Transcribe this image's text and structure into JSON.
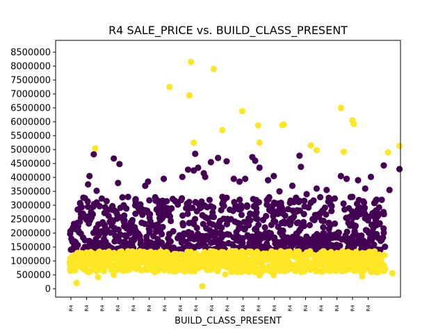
{
  "chart_data": {
    "type": "scatter",
    "title": "R4 SALE_PRICE vs. BUILD_CLASS_PRESENT",
    "xlabel": "BUILD_CLASS_PRESENT",
    "ylabel": "",
    "ylim": [
      0,
      8500000
    ],
    "yticks": [
      0,
      500000,
      1000000,
      1500000,
      2000000,
      2500000,
      3000000,
      3500000,
      4000000,
      4500000,
      5000000,
      5500000,
      6000000,
      6500000,
      7000000,
      7500000,
      8000000,
      8500000
    ],
    "ytick_labels": [
      "0",
      "500000",
      "1000000",
      "1500000",
      "2000000",
      "2500000",
      "3000000",
      "3500000",
      "4000000",
      "4500000",
      "5000000",
      "5500000",
      "6000000",
      "6500000",
      "7000000",
      "7500000",
      "8000000",
      "8500000"
    ],
    "xticks": [
      "R4",
      "R4",
      "R4",
      "R4",
      "R4",
      "R4",
      "R4",
      "R4",
      "R4",
      "R4",
      "R4",
      "R4",
      "R4",
      "R4",
      "R4",
      "R4",
      "R4",
      "R4",
      "R4",
      "R4"
    ],
    "xlim": [
      -1,
      21
    ],
    "grid": false,
    "legend": "none",
    "colors": {
      "high": "#440154",
      "low": "#fde725"
    },
    "series": [
      {
        "color_key": "low",
        "points": [
          [
            -0.6,
            210000
          ],
          [
            -0.5,
            880000
          ],
          [
            0.7,
            5050000
          ],
          [
            0.9,
            420000
          ],
          [
            2.0,
            500000
          ],
          [
            5.9,
            7250000
          ],
          [
            7.4,
            8150000
          ],
          [
            7.3,
            6950000
          ],
          [
            7.6,
            5250000
          ],
          [
            8.2,
            90000
          ],
          [
            9.0,
            7900000
          ],
          [
            9.6,
            5700000
          ],
          [
            9.8,
            520000
          ],
          [
            11.0,
            6380000
          ],
          [
            12.1,
            5870000
          ],
          [
            12.2,
            5250000
          ],
          [
            12.2,
            480000
          ],
          [
            13.8,
            5880000
          ],
          [
            13.9,
            5900000
          ],
          [
            13.2,
            490000
          ],
          [
            15.8,
            5150000
          ],
          [
            16.2,
            4980000
          ],
          [
            17.9,
            6500000
          ],
          [
            18.1,
            4920000
          ],
          [
            18.7,
            6050000
          ],
          [
            18.8,
            5920000
          ],
          [
            19.4,
            450000
          ],
          [
            21.2,
            4900000
          ],
          [
            22.0,
            5130000
          ],
          [
            21.5,
            560000
          ]
        ]
      },
      {
        "color_key": "high",
        "points": [
          [
            0.2,
            3750000
          ],
          [
            0.3,
            4050000
          ],
          [
            0.6,
            4830000
          ],
          [
            0.8,
            3520000
          ],
          [
            1.5,
            3150000
          ],
          [
            2.0,
            4680000
          ],
          [
            2.3,
            3800000
          ],
          [
            2.4,
            4480000
          ],
          [
            3.0,
            3300000
          ],
          [
            3.5,
            3000000
          ],
          [
            4.2,
            3700000
          ],
          [
            4.4,
            3850000
          ],
          [
            5.5,
            3950000
          ],
          [
            6.3,
            3150000
          ],
          [
            6.8,
            4020000
          ],
          [
            7.2,
            4280000
          ],
          [
            7.6,
            4250000
          ],
          [
            7.7,
            4850000
          ],
          [
            7.9,
            4350000
          ],
          [
            8.3,
            4150000
          ],
          [
            8.4,
            4020000
          ],
          [
            8.8,
            4550000
          ],
          [
            9.3,
            4700000
          ],
          [
            9.6,
            3300000
          ],
          [
            9.9,
            4580000
          ],
          [
            10.4,
            3950000
          ],
          [
            10.8,
            3850000
          ],
          [
            11.2,
            3950000
          ],
          [
            11.7,
            4730000
          ],
          [
            11.9,
            4600000
          ],
          [
            12.2,
            4350000
          ],
          [
            12.8,
            3900000
          ],
          [
            13.2,
            4050000
          ],
          [
            13.6,
            3500000
          ],
          [
            14.5,
            3700000
          ],
          [
            15.0,
            4780000
          ],
          [
            15.1,
            4380000
          ],
          [
            15.5,
            3400000
          ],
          [
            16.2,
            3600000
          ],
          [
            16.9,
            3550000
          ],
          [
            17.9,
            4050000
          ],
          [
            18.3,
            3950000
          ],
          [
            18.7,
            3300000
          ],
          [
            19.1,
            3900000
          ],
          [
            19.6,
            3600000
          ],
          [
            20.0,
            4020000
          ],
          [
            20.4,
            3200000
          ],
          [
            20.9,
            4430000
          ],
          [
            21.3,
            3550000
          ],
          [
            22.0,
            4300000
          ]
        ]
      }
    ]
  }
}
